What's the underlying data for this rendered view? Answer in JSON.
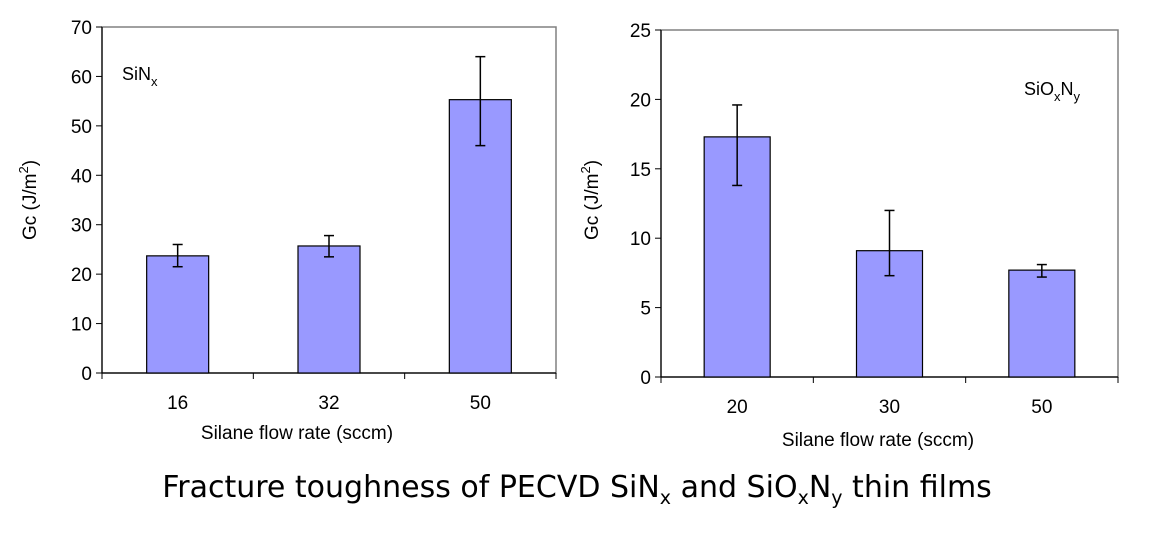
{
  "chart_data": [
    {
      "type": "bar",
      "label": {
        "base": "SiN",
        "sub1": "x",
        "mid": "",
        "sub2": ""
      },
      "categories": [
        "16",
        "32",
        "50"
      ],
      "values": [
        23.7,
        25.7,
        55.3
      ],
      "error_low": [
        21.5,
        23.5,
        46.0
      ],
      "error_high": [
        26.0,
        27.8,
        64.0
      ],
      "ylim": [
        0,
        70
      ],
      "yticks": [
        0,
        10,
        20,
        30,
        40,
        50,
        60,
        70
      ],
      "xlabel": "Silane flow rate (sccm)",
      "ylabel": {
        "main": "Gc (J/m",
        "sup": "2",
        "close": ")"
      },
      "bar_color": "#9999ff"
    },
    {
      "type": "bar",
      "label": {
        "base": "SiO",
        "sub1": "x",
        "mid": "N",
        "sub2": "y"
      },
      "categories": [
        "20",
        "30",
        "50"
      ],
      "values": [
        17.3,
        9.1,
        7.7
      ],
      "error_low": [
        13.8,
        7.3,
        7.2
      ],
      "error_high": [
        19.6,
        12.0,
        8.1
      ],
      "ylim": [
        0,
        25
      ],
      "yticks": [
        0,
        5,
        10,
        15,
        20,
        25
      ],
      "xlabel": "Silane flow rate (sccm)",
      "ylabel": {
        "main": "Gc (J/m",
        "sup": "2",
        "close": ")"
      },
      "bar_color": "#9999ff"
    }
  ],
  "caption": {
    "part1": "Fracture toughness of PECVD SiN",
    "sub1": "x",
    "part2": " and SiO",
    "sub2": "x",
    "part3": "N",
    "sub3": "y",
    "part4": " thin films"
  }
}
